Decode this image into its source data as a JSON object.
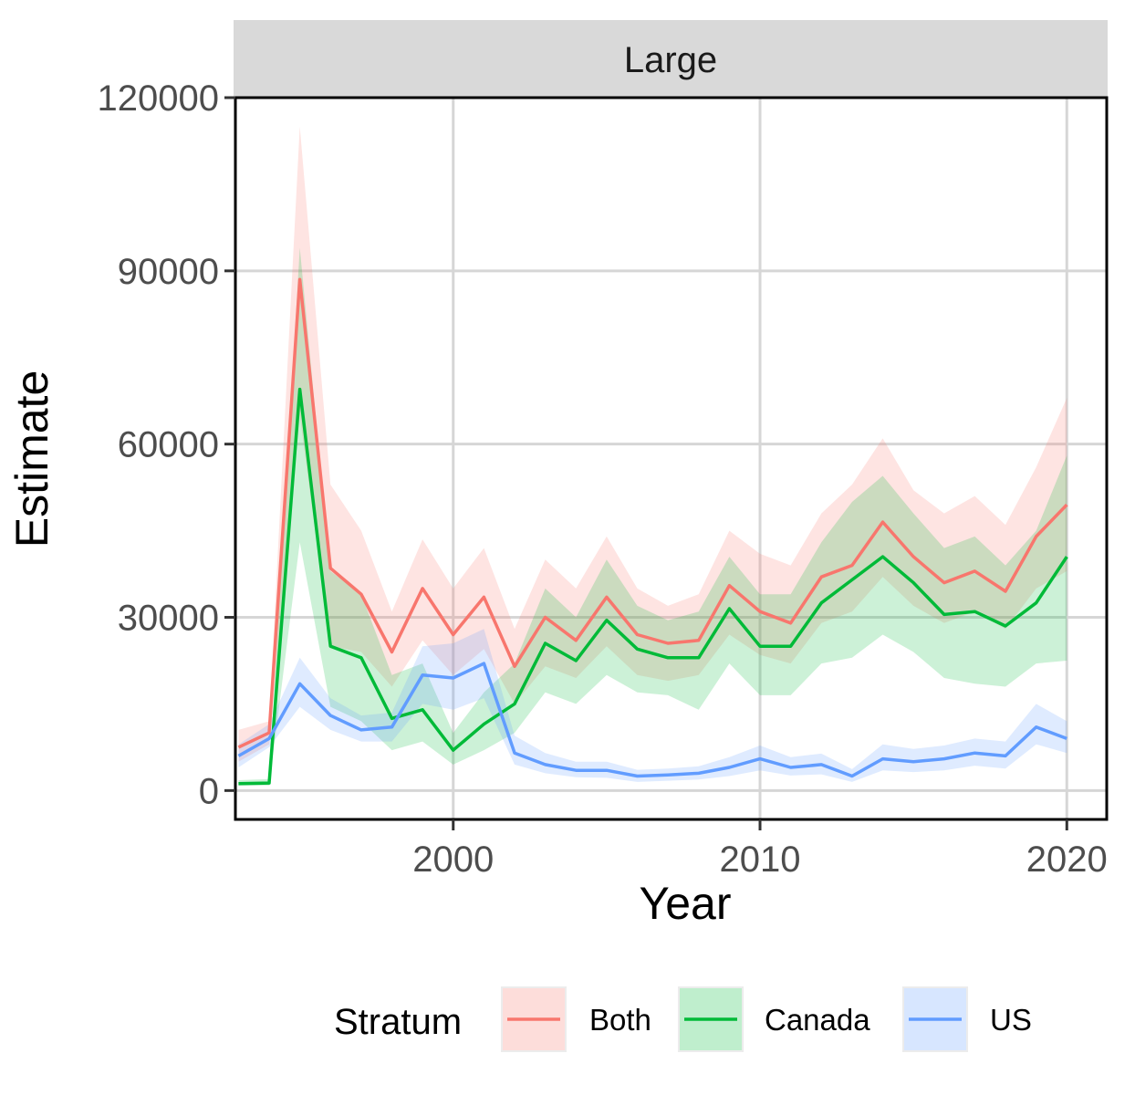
{
  "chart_data": {
    "type": "line",
    "facet_label": "Large",
    "xlabel": "Year",
    "ylabel": "Estimate",
    "xlim": [
      1992.9,
      2021.3
    ],
    "ylim": [
      -5000,
      120000
    ],
    "x_ticks": [
      2000,
      2010,
      2020
    ],
    "y_ticks": [
      0,
      30000,
      60000,
      90000,
      120000
    ],
    "grid": true,
    "legend": {
      "title": "Stratum",
      "position": "bottom"
    },
    "x": [
      1993,
      1994,
      1995,
      1996,
      1997,
      1998,
      1999,
      2000,
      2001,
      2002,
      2003,
      2004,
      2005,
      2006,
      2007,
      2008,
      2009,
      2010,
      2011,
      2012,
      2013,
      2014,
      2015,
      2016,
      2017,
      2018,
      2019,
      2020
    ],
    "series": [
      {
        "name": "Both",
        "color": "#F8766D",
        "values": [
          7500,
          10000,
          88500,
          38500,
          34000,
          24000,
          35000,
          27000,
          33500,
          21500,
          30000,
          26000,
          33500,
          27000,
          25500,
          26000,
          35500,
          31000,
          29000,
          37000,
          39000,
          46500,
          40500,
          36000,
          38000,
          34500,
          44000,
          49500
        ],
        "lower": [
          5000,
          8000,
          65000,
          25000,
          24000,
          18000,
          26000,
          20000,
          24500,
          15000,
          21500,
          19500,
          25000,
          20000,
          19000,
          20000,
          27000,
          23500,
          22000,
          29000,
          31000,
          37000,
          32000,
          29000,
          31000,
          28000,
          35000,
          38000
        ],
        "upper": [
          10500,
          12000,
          115000,
          53000,
          45000,
          31000,
          43500,
          35000,
          42000,
          28000,
          40000,
          35000,
          44000,
          35000,
          32000,
          34000,
          45000,
          41000,
          39000,
          48000,
          53000,
          61000,
          52000,
          48000,
          51000,
          46000,
          56000,
          68000
        ]
      },
      {
        "name": "Canada",
        "color": "#00BA38",
        "values": [
          1200,
          1300,
          69500,
          25000,
          23000,
          12500,
          14000,
          7000,
          11500,
          15000,
          25500,
          22500,
          29500,
          24500,
          23000,
          23000,
          31500,
          25000,
          25000,
          32500,
          36500,
          40500,
          36000,
          30500,
          31000,
          28500,
          32500,
          40500
        ],
        "lower": [
          800,
          900,
          43000,
          14500,
          12000,
          7000,
          8500,
          4500,
          7000,
          10000,
          17000,
          15000,
          20000,
          17000,
          16500,
          14000,
          22000,
          16500,
          16500,
          22000,
          23000,
          27000,
          24000,
          19500,
          18500,
          18000,
          22000,
          22500
        ],
        "upper": [
          1800,
          2000,
          94000,
          38000,
          34000,
          20000,
          22000,
          10000,
          17000,
          22000,
          35000,
          30000,
          40000,
          32000,
          29500,
          31000,
          40500,
          34000,
          34000,
          43000,
          50000,
          54500,
          48000,
          42000,
          44000,
          39000,
          45000,
          58000
        ]
      },
      {
        "name": "US",
        "color": "#619CFF",
        "values": [
          6000,
          9000,
          18500,
          13000,
          10500,
          11000,
          20000,
          19500,
          22000,
          6500,
          4500,
          3500,
          3500,
          2500,
          2700,
          3000,
          4000,
          5500,
          4000,
          4500,
          2500,
          5500,
          5000,
          5500,
          6500,
          6000,
          11000,
          9000
        ],
        "lower": [
          4000,
          7500,
          14500,
          10500,
          8500,
          8500,
          15000,
          14000,
          16000,
          4500,
          3000,
          2300,
          2200,
          1500,
          1700,
          1900,
          2500,
          3500,
          2600,
          2800,
          1500,
          3500,
          3200,
          3500,
          4300,
          3800,
          8000,
          6500
        ],
        "upper": [
          8000,
          11500,
          23000,
          16000,
          13000,
          13500,
          25000,
          25500,
          28000,
          9500,
          6500,
          5000,
          5000,
          3600,
          3800,
          4200,
          5800,
          7800,
          5800,
          6400,
          3700,
          8000,
          7200,
          7800,
          9000,
          8500,
          15000,
          12000
        ]
      }
    ]
  }
}
